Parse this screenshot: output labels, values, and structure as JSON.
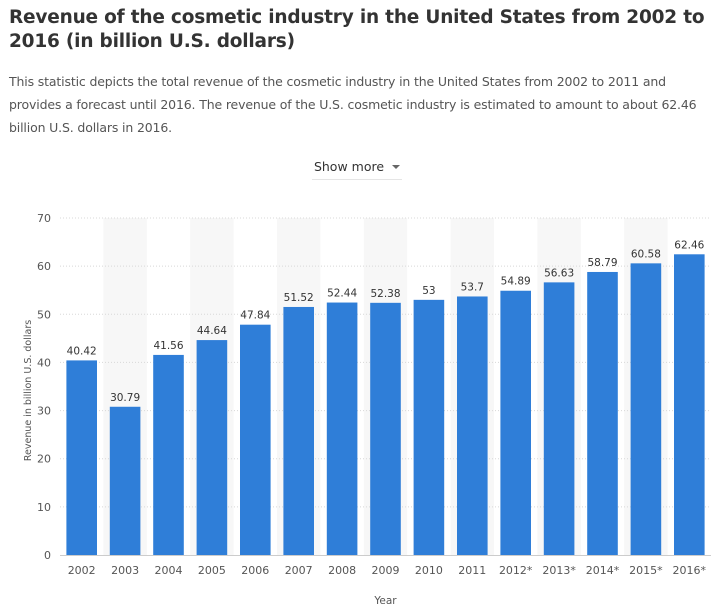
{
  "page": {
    "title": "Revenue of the cosmetic industry in the United States from 2002 to 2016 (in billion U.S. dollars)",
    "description": "This statistic depicts the total revenue of the cosmetic industry in the United States from 2002 to 2011 and provides a forecast until 2016. The revenue of the U.S. cosmetic industry is estimated to amount to about 62.46 billion U.S. dollars in 2016.",
    "show_more_label": "Show more"
  },
  "colors": {
    "bar": "#2f7ed8",
    "stripe": "#f7f7f7",
    "grid": "#d8d8d8",
    "axis_text": "#555555",
    "label_text": "#333333"
  },
  "chart_data": {
    "type": "bar",
    "title": "",
    "xlabel": "Year",
    "ylabel": "Revenue in billion U.S. dollars",
    "categories": [
      "2002",
      "2003",
      "2004",
      "2005",
      "2006",
      "2007",
      "2008",
      "2009",
      "2010",
      "2011",
      "2012*",
      "2013*",
      "2014*",
      "2015*",
      "2016*"
    ],
    "values": [
      40.42,
      30.79,
      41.56,
      44.64,
      47.84,
      51.52,
      52.44,
      52.38,
      53,
      53.7,
      54.89,
      56.63,
      58.79,
      60.58,
      62.46
    ],
    "value_labels": [
      "40.42",
      "30.79",
      "41.56",
      "44.64",
      "47.84",
      "51.52",
      "52.44",
      "52.38",
      "53",
      "53.7",
      "54.89",
      "56.63",
      "58.79",
      "60.58",
      "62.46"
    ],
    "yticks": [
      "0",
      "10",
      "20",
      "30",
      "40",
      "50",
      "60",
      "70"
    ],
    "ylim": [
      0,
      70
    ],
    "grid": true
  }
}
